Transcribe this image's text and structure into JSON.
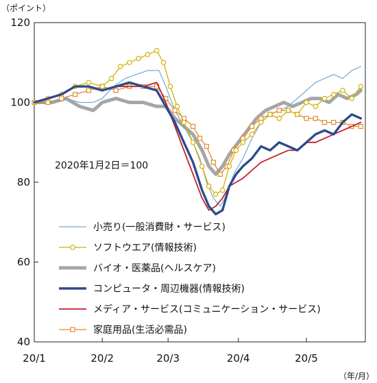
{
  "chart_data": {
    "type": "line",
    "y_unit_label": "（ポイント）",
    "x_unit_label": "（年/月）",
    "annotation": "2020年1月2日＝100",
    "ylim": [
      40,
      120
    ],
    "yticks": [
      40,
      60,
      80,
      100,
      120
    ],
    "x_ticks": [
      {
        "label": "20/1",
        "day": 0
      },
      {
        "label": "20/2",
        "day": 30
      },
      {
        "label": "20/3",
        "day": 59
      },
      {
        "label": "20/4",
        "day": 90
      },
      {
        "label": "20/5",
        "day": 120
      }
    ],
    "xlim": [
      0,
      146
    ],
    "grid": false,
    "legend_position": "bottom-inside",
    "series": [
      {
        "name": "小売り(一般消費財・サービス)",
        "color": "#6fa8d6",
        "marker": "none",
        "points": [
          [
            0,
            100
          ],
          [
            8,
            100
          ],
          [
            14,
            101
          ],
          [
            20,
            100
          ],
          [
            26,
            100
          ],
          [
            30,
            101
          ],
          [
            35,
            104
          ],
          [
            40,
            106
          ],
          [
            45,
            107
          ],
          [
            50,
            108
          ],
          [
            55,
            108
          ],
          [
            58,
            104
          ],
          [
            62,
            98
          ],
          [
            66,
            94
          ],
          [
            70,
            90
          ],
          [
            73,
            86
          ],
          [
            76,
            80
          ],
          [
            79,
            76
          ],
          [
            82,
            74
          ],
          [
            84,
            76
          ],
          [
            88,
            82
          ],
          [
            92,
            86
          ],
          [
            96,
            91
          ],
          [
            100,
            95
          ],
          [
            104,
            97
          ],
          [
            108,
            98
          ],
          [
            112,
            99
          ],
          [
            116,
            101
          ],
          [
            120,
            103
          ],
          [
            124,
            105
          ],
          [
            128,
            106
          ],
          [
            132,
            107
          ],
          [
            136,
            106
          ],
          [
            140,
            108
          ],
          [
            144,
            109
          ]
        ]
      },
      {
        "name": "ソフトウエア(情報技術)",
        "color": "#d4b000",
        "marker": "circle",
        "points": [
          [
            0,
            100
          ],
          [
            6,
            101
          ],
          [
            12,
            102
          ],
          [
            18,
            104
          ],
          [
            24,
            105
          ],
          [
            30,
            104
          ],
          [
            34,
            106
          ],
          [
            38,
            109
          ],
          [
            42,
            110
          ],
          [
            46,
            111
          ],
          [
            50,
            112
          ],
          [
            54,
            113
          ],
          [
            57,
            110
          ],
          [
            60,
            104
          ],
          [
            63,
            99
          ],
          [
            66,
            95
          ],
          [
            70,
            90
          ],
          [
            74,
            84
          ],
          [
            77,
            79
          ],
          [
            80,
            77
          ],
          [
            83,
            78
          ],
          [
            86,
            84
          ],
          [
            89,
            88
          ],
          [
            92,
            90
          ],
          [
            96,
            92
          ],
          [
            100,
            95
          ],
          [
            104,
            97
          ],
          [
            108,
            96
          ],
          [
            112,
            98
          ],
          [
            116,
            97
          ],
          [
            120,
            100
          ],
          [
            124,
            99
          ],
          [
            128,
            101
          ],
          [
            132,
            102
          ],
          [
            136,
            103
          ],
          [
            140,
            101
          ],
          [
            144,
            104
          ]
        ]
      },
      {
        "name": "バイオ・医薬品(ヘルスケア)",
        "color": "#a6a6a6",
        "marker": "none",
        "points": [
          [
            0,
            100
          ],
          [
            8,
            100
          ],
          [
            14,
            101
          ],
          [
            20,
            99
          ],
          [
            26,
            98
          ],
          [
            30,
            100
          ],
          [
            36,
            101
          ],
          [
            42,
            100
          ],
          [
            48,
            100
          ],
          [
            54,
            99
          ],
          [
            58,
            99
          ],
          [
            62,
            96
          ],
          [
            66,
            94
          ],
          [
            70,
            92
          ],
          [
            74,
            88
          ],
          [
            77,
            84
          ],
          [
            80,
            82
          ],
          [
            83,
            84
          ],
          [
            86,
            87
          ],
          [
            90,
            90
          ],
          [
            94,
            93
          ],
          [
            98,
            96
          ],
          [
            102,
            98
          ],
          [
            106,
            99
          ],
          [
            110,
            100
          ],
          [
            114,
            99
          ],
          [
            118,
            100
          ],
          [
            122,
            101
          ],
          [
            126,
            101
          ],
          [
            130,
            100
          ],
          [
            134,
            102
          ],
          [
            138,
            101
          ],
          [
            142,
            102
          ],
          [
            144,
            103
          ]
        ]
      },
      {
        "name": "コンピュータ・周辺機器(情報技術)",
        "color": "#2e4a8c",
        "marker": "none",
        "points": [
          [
            0,
            100
          ],
          [
            6,
            101
          ],
          [
            12,
            102
          ],
          [
            18,
            104
          ],
          [
            24,
            104
          ],
          [
            30,
            103
          ],
          [
            36,
            104
          ],
          [
            42,
            105
          ],
          [
            48,
            104
          ],
          [
            54,
            103
          ],
          [
            58,
            99
          ],
          [
            62,
            95
          ],
          [
            66,
            90
          ],
          [
            70,
            85
          ],
          [
            74,
            78
          ],
          [
            77,
            74
          ],
          [
            80,
            72
          ],
          [
            83,
            73
          ],
          [
            86,
            79
          ],
          [
            89,
            82
          ],
          [
            92,
            84
          ],
          [
            96,
            86
          ],
          [
            100,
            89
          ],
          [
            104,
            88
          ],
          [
            108,
            90
          ],
          [
            112,
            89
          ],
          [
            116,
            88
          ],
          [
            120,
            90
          ],
          [
            124,
            92
          ],
          [
            128,
            93
          ],
          [
            132,
            92
          ],
          [
            136,
            95
          ],
          [
            140,
            97
          ],
          [
            144,
            96
          ]
        ]
      },
      {
        "name": "メディア・サービス(コミュニケーション・サービス)",
        "color": "#c0202a",
        "marker": "none",
        "points": [
          [
            0,
            100
          ],
          [
            6,
            101
          ],
          [
            12,
            102
          ],
          [
            18,
            104
          ],
          [
            24,
            104
          ],
          [
            30,
            103
          ],
          [
            36,
            104
          ],
          [
            42,
            104
          ],
          [
            48,
            104
          ],
          [
            54,
            105
          ],
          [
            58,
            100
          ],
          [
            62,
            94
          ],
          [
            66,
            88
          ],
          [
            70,
            82
          ],
          [
            74,
            76
          ],
          [
            77,
            73
          ],
          [
            80,
            74
          ],
          [
            83,
            76
          ],
          [
            86,
            79
          ],
          [
            89,
            80
          ],
          [
            92,
            81
          ],
          [
            96,
            83
          ],
          [
            100,
            85
          ],
          [
            104,
            86
          ],
          [
            108,
            87
          ],
          [
            112,
            88
          ],
          [
            116,
            88
          ],
          [
            120,
            90
          ],
          [
            124,
            90
          ],
          [
            128,
            91
          ],
          [
            132,
            92
          ],
          [
            136,
            93
          ],
          [
            140,
            94
          ],
          [
            144,
            95
          ]
        ]
      },
      {
        "name": "家庭用品(生活必需品)",
        "color": "#e08a2a",
        "marker": "square",
        "points": [
          [
            0,
            100
          ],
          [
            6,
            100
          ],
          [
            12,
            101
          ],
          [
            18,
            102
          ],
          [
            24,
            103
          ],
          [
            30,
            104
          ],
          [
            36,
            103
          ],
          [
            42,
            104
          ],
          [
            48,
            104
          ],
          [
            54,
            104
          ],
          [
            58,
            101
          ],
          [
            62,
            98
          ],
          [
            66,
            96
          ],
          [
            70,
            94
          ],
          [
            73,
            91
          ],
          [
            76,
            89
          ],
          [
            79,
            85
          ],
          [
            82,
            82
          ],
          [
            85,
            84
          ],
          [
            88,
            88
          ],
          [
            92,
            91
          ],
          [
            96,
            94
          ],
          [
            100,
            96
          ],
          [
            104,
            97
          ],
          [
            108,
            98
          ],
          [
            112,
            98
          ],
          [
            116,
            97
          ],
          [
            120,
            96
          ],
          [
            124,
            96
          ],
          [
            128,
            95
          ],
          [
            132,
            95
          ],
          [
            136,
            95
          ],
          [
            140,
            94
          ],
          [
            144,
            94
          ]
        ]
      }
    ]
  }
}
